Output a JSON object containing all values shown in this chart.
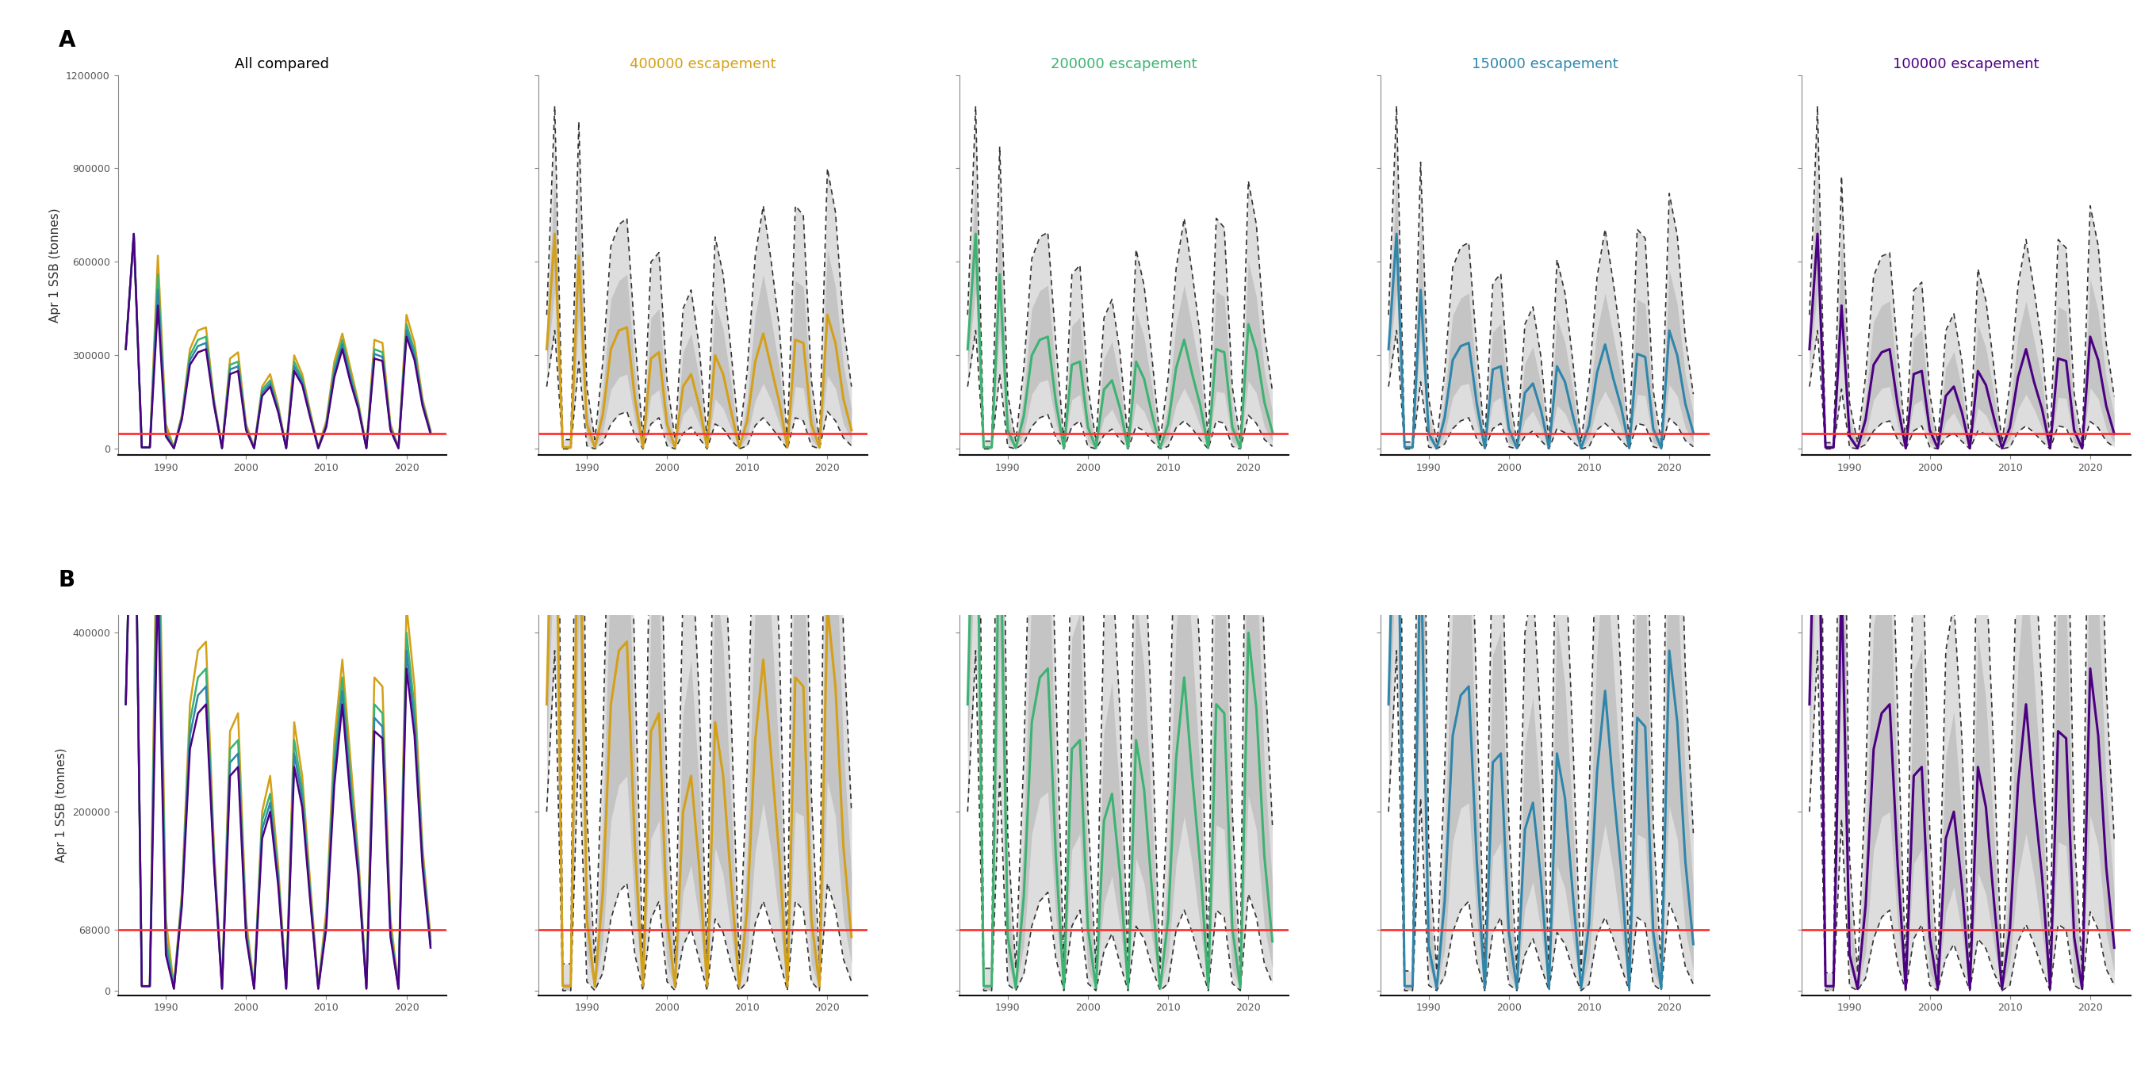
{
  "colors": {
    "400000": "#D4A017",
    "200000": "#3CB371",
    "150000": "#2E86AB",
    "100000": "#4B0082",
    "reference_line": "#FF3333",
    "shade_inner": "#C0C0C0",
    "shade_outer": "#D8D8D8",
    "dashed": "#333333"
  },
  "panel_titles": [
    "All compared",
    "400000 escapement",
    "200000 escapement",
    "150000 escapement",
    "100000 escapement"
  ],
  "panel_title_colors": [
    "#000000",
    "#D4A017",
    "#3CB371",
    "#2E86AB",
    "#4B0082"
  ],
  "row_A_ylim": [
    -20000,
    1200000
  ],
  "row_B_ylim": [
    -5000,
    420000
  ],
  "row_A_yticks": [
    0,
    300000,
    600000,
    900000,
    1200000
  ],
  "row_B_yticks": [
    0,
    68000,
    200000,
    400000
  ],
  "row_A_ref_line": 50000,
  "row_B_ref_line": 68000,
  "ylabel": "Apr 1 SSB (tonnes)",
  "row_labels": [
    "A",
    "B"
  ],
  "xticks": [
    1990,
    2000,
    2010,
    2020
  ],
  "xlim": [
    1984,
    2025
  ],
  "years": [
    1985,
    1986,
    1987,
    1988,
    1989,
    1990,
    1991,
    1992,
    1993,
    1994,
    1995,
    1996,
    1997,
    1998,
    1999,
    2000,
    2001,
    2002,
    2003,
    2004,
    2005,
    2006,
    2007,
    2008,
    2009,
    2010,
    2011,
    2012,
    2013,
    2014,
    2015,
    2016,
    2017,
    2018,
    2019,
    2020,
    2021,
    2022,
    2023
  ],
  "median_400000": [
    320000,
    690000,
    5000,
    5000,
    620000,
    80000,
    5000,
    110000,
    320000,
    380000,
    390000,
    160000,
    5000,
    290000,
    310000,
    80000,
    5000,
    200000,
    240000,
    140000,
    5000,
    300000,
    240000,
    120000,
    5000,
    90000,
    280000,
    370000,
    260000,
    150000,
    5000,
    350000,
    340000,
    80000,
    5000,
    430000,
    340000,
    160000,
    60000
  ],
  "median_200000": [
    320000,
    690000,
    5000,
    5000,
    560000,
    60000,
    3000,
    105000,
    300000,
    350000,
    360000,
    150000,
    3000,
    270000,
    280000,
    70000,
    3000,
    190000,
    220000,
    130000,
    3000,
    280000,
    225000,
    110000,
    3000,
    80000,
    260000,
    350000,
    240000,
    140000,
    3000,
    320000,
    310000,
    70000,
    3000,
    400000,
    315000,
    150000,
    55000
  ],
  "median_150000": [
    320000,
    690000,
    5000,
    5000,
    510000,
    50000,
    2500,
    100000,
    285000,
    330000,
    340000,
    145000,
    2500,
    255000,
    265000,
    65000,
    2500,
    180000,
    210000,
    125000,
    2500,
    265000,
    215000,
    105000,
    2500,
    75000,
    245000,
    335000,
    228000,
    135000,
    2500,
    305000,
    295000,
    65000,
    2500,
    380000,
    300000,
    145000,
    52000
  ],
  "median_100000": [
    320000,
    690000,
    5000,
    5000,
    460000,
    40000,
    2000,
    95000,
    270000,
    310000,
    320000,
    140000,
    2000,
    240000,
    250000,
    60000,
    2000,
    170000,
    200000,
    118000,
    2000,
    250000,
    205000,
    100000,
    2000,
    70000,
    230000,
    320000,
    215000,
    128000,
    2000,
    290000,
    282000,
    60000,
    2000,
    360000,
    285000,
    138000,
    48000
  ],
  "p95_400000": [
    430000,
    1100000,
    30000,
    30000,
    1050000,
    200000,
    30000,
    280000,
    650000,
    720000,
    740000,
    360000,
    30000,
    600000,
    630000,
    220000,
    30000,
    450000,
    510000,
    330000,
    30000,
    680000,
    560000,
    310000,
    30000,
    250000,
    620000,
    780000,
    600000,
    390000,
    30000,
    780000,
    750000,
    220000,
    30000,
    900000,
    760000,
    400000,
    200000
  ],
  "p05_400000": [
    200000,
    380000,
    0,
    0,
    280000,
    10000,
    0,
    20000,
    80000,
    110000,
    120000,
    40000,
    0,
    80000,
    100000,
    10000,
    0,
    50000,
    70000,
    35000,
    0,
    80000,
    65000,
    28000,
    0,
    10000,
    75000,
    100000,
    70000,
    35000,
    0,
    100000,
    90000,
    10000,
    0,
    120000,
    90000,
    35000,
    10000
  ],
  "p75_400000": [
    370000,
    870000,
    8000,
    8000,
    810000,
    130000,
    8000,
    185000,
    480000,
    540000,
    560000,
    250000,
    8000,
    420000,
    450000,
    150000,
    8000,
    310000,
    370000,
    230000,
    8000,
    470000,
    385000,
    210000,
    8000,
    155000,
    430000,
    560000,
    415000,
    260000,
    8000,
    540000,
    520000,
    150000,
    8000,
    640000,
    520000,
    270000,
    130000
  ],
  "p25_400000": [
    265000,
    510000,
    1000,
    1000,
    420000,
    40000,
    1000,
    55000,
    190000,
    230000,
    240000,
    90000,
    1000,
    170000,
    190000,
    30000,
    1000,
    110000,
    140000,
    80000,
    1000,
    160000,
    130000,
    65000,
    1000,
    40000,
    155000,
    210000,
    155000,
    80000,
    1000,
    200000,
    195000,
    30000,
    1000,
    235000,
    195000,
    80000,
    30000
  ],
  "p95_200000": [
    430000,
    1100000,
    25000,
    25000,
    970000,
    175000,
    25000,
    260000,
    610000,
    680000,
    695000,
    340000,
    25000,
    560000,
    590000,
    200000,
    25000,
    420000,
    480000,
    310000,
    25000,
    640000,
    525000,
    290000,
    25000,
    230000,
    580000,
    740000,
    565000,
    365000,
    25000,
    740000,
    710000,
    200000,
    25000,
    860000,
    720000,
    375000,
    185000
  ],
  "p05_200000": [
    200000,
    380000,
    0,
    0,
    240000,
    7000,
    0,
    18000,
    72000,
    100000,
    110000,
    36000,
    0,
    72000,
    90000,
    8000,
    0,
    44000,
    64000,
    30000,
    0,
    72000,
    58000,
    25000,
    0,
    8000,
    68000,
    90000,
    65000,
    30000,
    0,
    90000,
    82000,
    8000,
    0,
    108000,
    82000,
    30000,
    8000
  ],
  "p75_200000": [
    370000,
    870000,
    6000,
    6000,
    750000,
    115000,
    6000,
    172000,
    450000,
    508000,
    525000,
    235000,
    6000,
    395000,
    422000,
    138000,
    6000,
    290000,
    345000,
    215000,
    6000,
    440000,
    360000,
    196000,
    6000,
    142000,
    402000,
    525000,
    388000,
    242000,
    6000,
    505000,
    488000,
    138000,
    6000,
    602000,
    488000,
    252000,
    120000
  ],
  "p25_200000": [
    265000,
    510000,
    800,
    800,
    385000,
    32000,
    800,
    50000,
    175000,
    215000,
    222000,
    82000,
    800,
    158000,
    175000,
    25000,
    800,
    98000,
    128000,
    72000,
    800,
    148000,
    120000,
    58000,
    800,
    36000,
    142000,
    195000,
    142000,
    72000,
    800,
    185000,
    180000,
    25000,
    800,
    218000,
    180000,
    72000,
    25000
  ],
  "p95_150000": [
    430000,
    1100000,
    22000,
    22000,
    920000,
    162000,
    22000,
    248000,
    582000,
    648000,
    662000,
    322000,
    22000,
    532000,
    562000,
    188000,
    22000,
    400000,
    456000,
    296000,
    22000,
    608000,
    500000,
    275000,
    22000,
    218000,
    552000,
    705000,
    538000,
    348000,
    22000,
    705000,
    676000,
    188000,
    22000,
    820000,
    685000,
    358000,
    176000
  ],
  "p05_150000": [
    200000,
    380000,
    0,
    0,
    215000,
    6000,
    0,
    16000,
    65000,
    90000,
    100000,
    32000,
    0,
    65000,
    82000,
    7000,
    0,
    40000,
    58000,
    27000,
    0,
    65000,
    52000,
    22000,
    0,
    7000,
    62000,
    82000,
    58000,
    27000,
    0,
    82000,
    75000,
    7000,
    0,
    98000,
    75000,
    27000,
    7000
  ],
  "p75_150000": [
    370000,
    870000,
    5500,
    5500,
    712000,
    108000,
    5500,
    164000,
    428000,
    484000,
    500000,
    222000,
    5500,
    375000,
    402000,
    130000,
    5500,
    275000,
    328000,
    205000,
    5500,
    418000,
    342000,
    186000,
    5500,
    135000,
    382000,
    500000,
    368000,
    230000,
    5500,
    480000,
    465000,
    130000,
    5500,
    574000,
    465000,
    240000,
    114000
  ],
  "p25_150000": [
    265000,
    510000,
    700,
    700,
    362000,
    28000,
    700,
    46000,
    166000,
    204000,
    210000,
    78000,
    700,
    150000,
    166000,
    22000,
    700,
    92000,
    122000,
    68000,
    700,
    140000,
    114000,
    55000,
    700,
    34000,
    135000,
    186000,
    135000,
    68000,
    700,
    175000,
    170000,
    22000,
    700,
    206000,
    170000,
    68000,
    22000
  ],
  "p95_100000": [
    430000,
    1100000,
    20000,
    20000,
    875000,
    148000,
    20000,
    235000,
    555000,
    618000,
    630000,
    306000,
    20000,
    508000,
    535000,
    178000,
    20000,
    380000,
    434000,
    282000,
    20000,
    578000,
    476000,
    262000,
    20000,
    208000,
    524000,
    672000,
    512000,
    332000,
    20000,
    672000,
    645000,
    178000,
    20000,
    780000,
    652000,
    340000,
    168000
  ],
  "p05_100000": [
    200000,
    380000,
    0,
    0,
    192000,
    5000,
    0,
    14000,
    58000,
    82000,
    90000,
    29000,
    0,
    58000,
    74000,
    6000,
    0,
    36000,
    52000,
    24000,
    0,
    58000,
    47000,
    20000,
    0,
    6000,
    55000,
    74000,
    52000,
    24000,
    0,
    74000,
    68000,
    6000,
    0,
    88000,
    68000,
    24000,
    6000
  ],
  "p75_100000": [
    370000,
    870000,
    5000,
    5000,
    675000,
    102000,
    5000,
    156000,
    408000,
    460000,
    475000,
    210000,
    5000,
    356000,
    382000,
    122000,
    5000,
    262000,
    312000,
    195000,
    5000,
    398000,
    326000,
    176000,
    5000,
    128000,
    364000,
    475000,
    350000,
    218000,
    5000,
    456000,
    442000,
    122000,
    5000,
    546000,
    442000,
    228000,
    108000
  ],
  "p25_100000": [
    265000,
    510000,
    600,
    600,
    340000,
    25000,
    600,
    42000,
    158000,
    194000,
    200000,
    74000,
    600,
    142000,
    158000,
    20000,
    600,
    88000,
    116000,
    65000,
    600,
    132000,
    108000,
    52000,
    600,
    32000,
    128000,
    176000,
    128000,
    65000,
    600,
    166000,
    162000,
    20000,
    600,
    196000,
    162000,
    65000,
    20000
  ]
}
